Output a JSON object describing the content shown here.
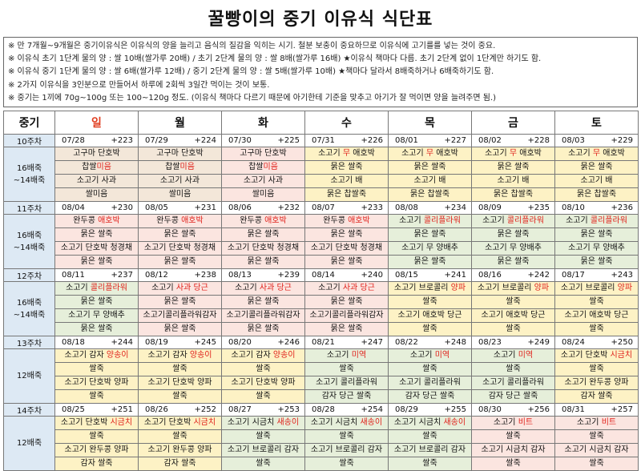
{
  "title": "꿀빵이의 중기 이유식 식단표",
  "notes": [
    "※ 만 7개월~9개월은 중기이유식은 이유식의 양을 늘리고 음식의 질감을 익히는 시기. 철분 보충이 중요하므로 이유식에 고기를를 넣는 것이 중요.",
    "※ 이유식 초기 1단계 물의 양 : 쌀 10배(쌀가루 20배) / 초기 2단계 물의 양 : 쌀 8배(쌀가루 16배) ★이유식 책마다 다름. 초기 2단계 없이 1단계만 하기도 함.",
    "※ 이유식 중기 1단계 물의 양 : 쌀 6배(쌀가루 12배) / 중기 2단계 물의 양 : 쌀 5배(쌀가루 10배) ★책마다 달라서 8배죽하거나 6배죽하기도 함.",
    "※ 2가지 이유식을 3인분으로 만들어서 하루에 2회씩 3일간 먹이는 것이 보통.",
    "※ 중기는 1끼에 70g~100g 또는 100~120g 정도. (이유식 책마다 다르기 때문에 아기한테 기준을 맞추고 아기가 잘 먹이면 양을 늘려주면 됨.)"
  ],
  "header": {
    "label": "중기",
    "days": [
      "일",
      "월",
      "화",
      "수",
      "목",
      "금",
      "토"
    ]
  },
  "weeks": [
    {
      "label": "10주차",
      "dates": [
        [
          "07/28",
          "+223"
        ],
        [
          "07/29",
          "+224"
        ],
        [
          "07/30",
          "+225"
        ],
        [
          "07/31",
          "+226"
        ],
        [
          "08/01",
          "+227"
        ],
        [
          "08/02",
          "+228"
        ],
        [
          "08/03",
          "+229"
        ]
      ],
      "rowhead": [
        "16배죽",
        "~14배죽"
      ],
      "meals": [
        [
          [
            [
              "고구마 단호박"
            ],
            [
              "찹쌀",
              "미음"
            ]
          ],
          [
            [
              "소고기 사과"
            ],
            [
              "쌀미음"
            ]
          ]
        ],
        [
          [
            [
              "고구마 단호박"
            ],
            [
              "찹쌀",
              "미음"
            ]
          ],
          [
            [
              "소고기 사과"
            ],
            [
              "쌀미음"
            ]
          ]
        ],
        [
          [
            [
              "고구마 단호박"
            ],
            [
              "찹쌀",
              "미음"
            ]
          ],
          [
            [
              "소고기 사과"
            ],
            [
              "쌀미음"
            ]
          ]
        ],
        [
          [
            [
              "소고기 ",
              "무",
              " 애호박"
            ],
            [
              "묽은 쌀죽"
            ]
          ],
          [
            [
              "소고기 배"
            ],
            [
              "묽은 찹쌀죽"
            ]
          ]
        ],
        [
          [
            [
              "소고기 ",
              "무",
              " 애호박"
            ],
            [
              "묽은 쌀죽"
            ]
          ],
          [
            [
              "소고기 배"
            ],
            [
              "묽은 찹쌀죽"
            ]
          ]
        ],
        [
          [
            [
              "소고기 ",
              "무",
              " 애호박"
            ],
            [
              "묽은 쌀죽"
            ]
          ],
          [
            [
              "소고기 배"
            ],
            [
              "묽은 찹쌀죽"
            ]
          ]
        ],
        [
          [
            [
              "소고기 ",
              "무",
              " 애호박"
            ],
            [
              "묽은 쌀죽"
            ]
          ],
          [
            [
              "소고기 배"
            ],
            [
              "묽은 찹쌀죽"
            ]
          ]
        ]
      ]
    },
    {
      "label": "11주차",
      "dates": [
        [
          "08/04",
          "+230"
        ],
        [
          "08/05",
          "+231"
        ],
        [
          "08/06",
          "+232"
        ],
        [
          "08/07",
          "+233"
        ],
        [
          "08/08",
          "+234"
        ],
        [
          "08/09",
          "+235"
        ],
        [
          "08/10",
          "+236"
        ]
      ],
      "rowhead": [
        "16배죽",
        "~14배죽"
      ],
      "meals": [
        [
          [
            [
              "완두콩",
              " 애호박"
            ],
            [
              "묽은 쌀죽"
            ]
          ],
          [
            [
              "소고기 단호박 청경채"
            ],
            [
              "묽은 쌀죽"
            ]
          ]
        ],
        [
          [
            [
              "완두콩",
              " 애호박"
            ],
            [
              "묽은 쌀죽"
            ]
          ],
          [
            [
              "소고기 단호박 청경채"
            ],
            [
              "묽은 쌀죽"
            ]
          ]
        ],
        [
          [
            [
              "완두콩",
              " 애호박"
            ],
            [
              "묽은 쌀죽"
            ]
          ],
          [
            [
              "소고기 단호박 청경채"
            ],
            [
              "묽은 쌀죽"
            ]
          ]
        ],
        [
          [
            [
              "완두콩",
              " 애호박"
            ],
            [
              "묽은 쌀죽"
            ]
          ],
          [
            [
              "소고기 단호박 청경채"
            ],
            [
              "묽은 쌀죽"
            ]
          ]
        ],
        [
          [
            [
              "소고기 ",
              "콜리플라워"
            ],
            [
              "묽은 쌀죽"
            ]
          ],
          [
            [
              "소고기 무 양배추"
            ],
            [
              "묽은 쌀죽"
            ]
          ]
        ],
        [
          [
            [
              "소고기 ",
              "콜리플라워"
            ],
            [
              "묽은 쌀죽"
            ]
          ],
          [
            [
              "소고기 무 양배추"
            ],
            [
              "묽은 쌀죽"
            ]
          ]
        ],
        [
          [
            [
              "소고기 ",
              "콜리플라워"
            ],
            [
              "묽은 쌀죽"
            ]
          ],
          [
            [
              "소고기 무 양배추"
            ],
            [
              "묽은 쌀죽"
            ]
          ]
        ]
      ]
    },
    {
      "label": "12주차",
      "dates": [
        [
          "08/11",
          "+237"
        ],
        [
          "08/12",
          "+238"
        ],
        [
          "08/13",
          "+239"
        ],
        [
          "08/14",
          "+240"
        ],
        [
          "08/15",
          "+241"
        ],
        [
          "08/16",
          "+242"
        ],
        [
          "08/17",
          "+243"
        ]
      ],
      "rowhead": [
        "16배죽",
        "~14배죽"
      ],
      "meals": [
        [
          [
            [
              "소고기 ",
              "콜리플라워"
            ],
            [
              "묽은 쌀죽"
            ]
          ],
          [
            [
              "소고기 무 양배추"
            ],
            [
              "묽은 쌀죽"
            ]
          ]
        ],
        [
          [
            [
              "소고기 ",
              "사과 당근"
            ],
            [
              "묽은 쌀죽"
            ]
          ],
          [
            [
              "소고기콜리플라워감자"
            ],
            [
              "묽은 쌀죽"
            ]
          ]
        ],
        [
          [
            [
              "소고기 ",
              "사과 당근"
            ],
            [
              "묽은 쌀죽"
            ]
          ],
          [
            [
              "소고기콜리플라워감자"
            ],
            [
              "묽은 쌀죽"
            ]
          ]
        ],
        [
          [
            [
              "소고기 ",
              "사과 당근"
            ],
            [
              "묽은 쌀죽"
            ]
          ],
          [
            [
              "소고기콜리플라워감자"
            ],
            [
              "묽은 쌀죽"
            ]
          ]
        ],
        [
          [
            [
              "소고기 브로콜리 ",
              "양파"
            ],
            [
              "쌀죽"
            ]
          ],
          [
            [
              "소고기 애호박 당근"
            ],
            [
              "쌀죽"
            ]
          ]
        ],
        [
          [
            [
              "소고기 브로콜리 ",
              "양파"
            ],
            [
              "쌀죽"
            ]
          ],
          [
            [
              "소고기 애호박 당근"
            ],
            [
              "쌀죽"
            ]
          ]
        ],
        [
          [
            [
              "소고기 브로콜리 ",
              "양파"
            ],
            [
              "쌀죽"
            ]
          ],
          [
            [
              "소고기 애호박 당근"
            ],
            [
              "쌀죽"
            ]
          ]
        ]
      ]
    },
    {
      "label": "13주차",
      "dates": [
        [
          "08/18",
          "+244"
        ],
        [
          "08/19",
          "+245"
        ],
        [
          "08/20",
          "+246"
        ],
        [
          "08/21",
          "+247"
        ],
        [
          "08/22",
          "+248"
        ],
        [
          "08/23",
          "+249"
        ],
        [
          "08/24",
          "+250"
        ]
      ],
      "rowhead": [
        "12배죽"
      ],
      "meals": [
        [
          [
            [
              "소고기 감자 ",
              "양송이"
            ],
            [
              "쌀죽"
            ]
          ],
          [
            [
              "소고기 단호박 양파"
            ],
            [
              "쌀죽"
            ]
          ]
        ],
        [
          [
            [
              "소고기 감자 ",
              "양송이"
            ],
            [
              "쌀죽"
            ]
          ],
          [
            [
              "소고기 단호박 양파"
            ],
            [
              "쌀죽"
            ]
          ]
        ],
        [
          [
            [
              "소고기 감자 ",
              "양송이"
            ],
            [
              "쌀죽"
            ]
          ],
          [
            [
              "소고기 단호박 양파"
            ],
            [
              "쌀죽"
            ]
          ]
        ],
        [
          [
            [
              "소고기 ",
              "미역"
            ],
            [
              "쌀죽"
            ]
          ],
          [
            [
              "소고기 콜리플라워"
            ],
            [
              "감자 당근 쌀죽"
            ]
          ]
        ],
        [
          [
            [
              "소고기 ",
              "미역"
            ],
            [
              "쌀죽"
            ]
          ],
          [
            [
              "소고기 콜리플라워"
            ],
            [
              "감자 당근 쌀죽"
            ]
          ]
        ],
        [
          [
            [
              "소고기 ",
              "미역"
            ],
            [
              "쌀죽"
            ]
          ],
          [
            [
              "소고기 콜리플라워"
            ],
            [
              "감자 당근 쌀죽"
            ]
          ]
        ],
        [
          [
            [
              "소고기 단호박 ",
              "시금치"
            ],
            [
              "쌀죽"
            ]
          ],
          [
            [
              "소고기 완두콩 양파"
            ],
            [
              "감자 쌀죽"
            ]
          ]
        ]
      ]
    },
    {
      "label": "14주차",
      "dates": [
        [
          "08/25",
          "+251"
        ],
        [
          "08/26",
          "+252"
        ],
        [
          "08/27",
          "+253"
        ],
        [
          "08/28",
          "+254"
        ],
        [
          "08/29",
          "+255"
        ],
        [
          "08/30",
          "+256"
        ],
        [
          "08/31",
          "+257"
        ]
      ],
      "rowhead": [
        "12배죽"
      ],
      "meals": [
        [
          [
            [
              "소고기 단호박 ",
              "시금치"
            ],
            [
              "쌀죽"
            ]
          ],
          [
            [
              "소고기 완두콩 양파"
            ],
            [
              "감자 쌀죽"
            ]
          ]
        ],
        [
          [
            [
              "소고기 단호박 ",
              "시금치"
            ],
            [
              "쌀죽"
            ]
          ],
          [
            [
              "소고기 완두콩 양파"
            ],
            [
              "감자 쌀죽"
            ]
          ]
        ],
        [
          [
            [
              "소고기 시금치 ",
              "새송이"
            ],
            [
              "쌀죽"
            ]
          ],
          [
            [
              "소고기 브로콜리 감자"
            ],
            [
              "쌀죽"
            ]
          ]
        ],
        [
          [
            [
              "소고기 시금치 ",
              "새송이"
            ],
            [
              "쌀죽"
            ]
          ],
          [
            [
              "소고기 브로콜리 감자"
            ],
            [
              "쌀죽"
            ]
          ]
        ],
        [
          [
            [
              "소고기 시금치 ",
              "새송이"
            ],
            [
              "쌀죽"
            ]
          ],
          [
            [
              "소고기 브로콜리 감자"
            ],
            [
              "쌀죽"
            ]
          ]
        ],
        [
          [
            [
              "소고기 ",
              "비트"
            ],
            [
              "쌀죽"
            ]
          ],
          [
            [
              "소고기 시금치 감자"
            ],
            [
              "쌀죽"
            ]
          ]
        ],
        [
          [
            [
              "소고기 ",
              "비트"
            ],
            [
              "쌀죽"
            ]
          ],
          [
            [
              "소고기 시금치 감자"
            ],
            [
              "쌀죽"
            ]
          ]
        ]
      ]
    }
  ],
  "colors": {
    "highlight": "#e0201a",
    "header_blue": "#dde9f4",
    "sunday": "#fde9de",
    "saturday": "#dbe6f5"
  }
}
